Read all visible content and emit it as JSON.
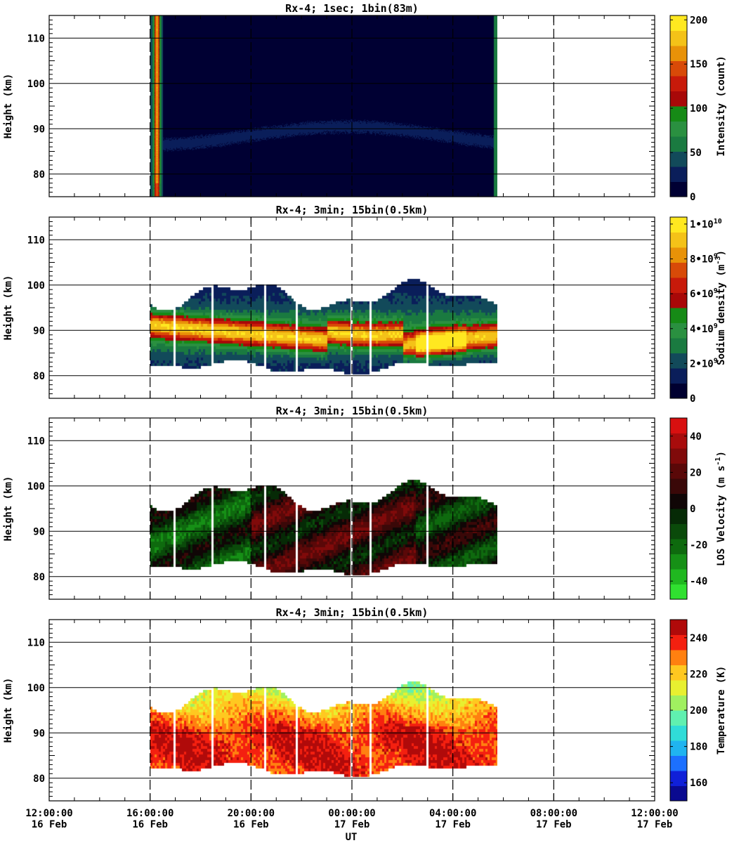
{
  "chart_data": [
    {
      "type": "heatmap",
      "title": "Rx-4;  1sec; 1bin(83m)",
      "ylabel": "Height (km)",
      "ylim": [
        75,
        115
      ],
      "yticks": [
        80,
        90,
        100,
        110
      ],
      "xlim_hours": [
        0,
        24
      ],
      "data_extent_hours": [
        4.0,
        17.75
      ],
      "colorbar": {
        "label": "Intensity (count)",
        "ticks": [
          "0",
          "50",
          "100",
          "150",
          "200"
        ],
        "range": [
          0,
          205
        ],
        "colors": [
          "#000033",
          "#0a1e5a",
          "#124a5a",
          "#1a7a40",
          "#2a9040",
          "#168a16",
          "#a80808",
          "#c81a0a",
          "#d84a08",
          "#e89208",
          "#f4c218",
          "#ffe820"
        ]
      },
      "description_layer": "dark background with faint sodium layer near 85-92 km; strong edge at ~16:30 UT"
    },
    {
      "type": "heatmap",
      "title": "Rx-4; 3min; 15bin(0.5km)",
      "ylabel": "Height (km)",
      "ylim": [
        75,
        115
      ],
      "yticks": [
        80,
        90,
        100,
        110
      ],
      "xlim_hours": [
        0,
        24
      ],
      "data_extent_hours": [
        4.0,
        17.75
      ],
      "colorbar": {
        "label_main": "Sodium density",
        "label_unit": "(m",
        "label_exp": "-3",
        "label_close": ")",
        "ticks": [
          {
            "v": 0,
            "base": "0",
            "exp": ""
          },
          {
            "v": 2,
            "base": "2•10",
            "exp": "9"
          },
          {
            "v": 4,
            "base": "4•10",
            "exp": "9"
          },
          {
            "v": 6,
            "base": "6•10",
            "exp": "9"
          },
          {
            "v": 8,
            "base": "8•10",
            "exp": "9"
          },
          {
            "v": 10,
            "base": "1•10",
            "exp": "10"
          }
        ],
        "range": [
          0,
          10.4
        ],
        "colors": [
          "#000030",
          "#0a1e5a",
          "#124a5a",
          "#1a7a40",
          "#2a9040",
          "#168a16",
          "#a80808",
          "#c81a0a",
          "#d84a08",
          "#e89208",
          "#f4c218",
          "#ffe820"
        ]
      },
      "layer": {
        "top_km": 100,
        "bottom_km": 82,
        "peak_km": 90.5,
        "peak_value": 9.5
      }
    },
    {
      "type": "heatmap",
      "title": "Rx-4; 3min; 15bin(0.5km)",
      "ylabel": "Height (km)",
      "ylim": [
        75,
        115
      ],
      "yticks": [
        80,
        90,
        100,
        110
      ],
      "xlim_hours": [
        0,
        24
      ],
      "data_extent_hours": [
        4.0,
        17.75
      ],
      "colorbar": {
        "label_main": "LOS Velocity",
        "label_unit": "(m s",
        "label_exp": "-1",
        "label_close": ")",
        "ticks": [
          {
            "v": -40,
            "base": "-40",
            "exp": ""
          },
          {
            "v": -20,
            "base": "-20",
            "exp": ""
          },
          {
            "v": 0,
            "base": "0",
            "exp": ""
          },
          {
            "v": 20,
            "base": "20",
            "exp": ""
          },
          {
            "v": 40,
            "base": "40",
            "exp": ""
          }
        ],
        "range": [
          -50,
          50
        ],
        "colors": [
          "#30e030",
          "#20b820",
          "#169016",
          "#0e6a0e",
          "#0a4a0a",
          "#062a06",
          "#100606",
          "#3a0808",
          "#5a0808",
          "#800a0a",
          "#a80c0c",
          "#d81010"
        ]
      }
    },
    {
      "type": "heatmap",
      "title": "Rx-4; 3min; 15bin(0.5km)",
      "ylabel": "Height (km)",
      "ylim": [
        75,
        115
      ],
      "yticks": [
        80,
        90,
        100,
        110
      ],
      "xlim_hours": [
        0,
        24
      ],
      "data_extent_hours": [
        4.0,
        17.75
      ],
      "colorbar": {
        "label_main": "Temperature (K)",
        "ticks": [
          {
            "v": 160,
            "base": "160",
            "exp": ""
          },
          {
            "v": 180,
            "base": "180",
            "exp": ""
          },
          {
            "v": 200,
            "base": "200",
            "exp": ""
          },
          {
            "v": 220,
            "base": "220",
            "exp": ""
          },
          {
            "v": 240,
            "base": "240",
            "exp": ""
          }
        ],
        "range": [
          150,
          250
        ],
        "colors": [
          "#0a0a90",
          "#1020d8",
          "#1c70ff",
          "#20b4f0",
          "#30dcd8",
          "#60f0b0",
          "#a0f060",
          "#e8f030",
          "#ffc820",
          "#ff8010",
          "#f42010",
          "#b00a0a"
        ]
      }
    }
  ],
  "x_axis": {
    "label": "UT",
    "ticks": [
      {
        "time": "12:00:00",
        "date": "16 Feb"
      },
      {
        "time": "16:00:00",
        "date": "16 Feb"
      },
      {
        "time": "20:00:00",
        "date": "16 Feb"
      },
      {
        "time": "00:00:00",
        "date": "17 Feb"
      },
      {
        "time": "04:00:00",
        "date": "17 Feb"
      },
      {
        "time": "08:00:00",
        "date": "17 Feb"
      },
      {
        "time": "12:00:00",
        "date": "17 Feb"
      }
    ]
  }
}
